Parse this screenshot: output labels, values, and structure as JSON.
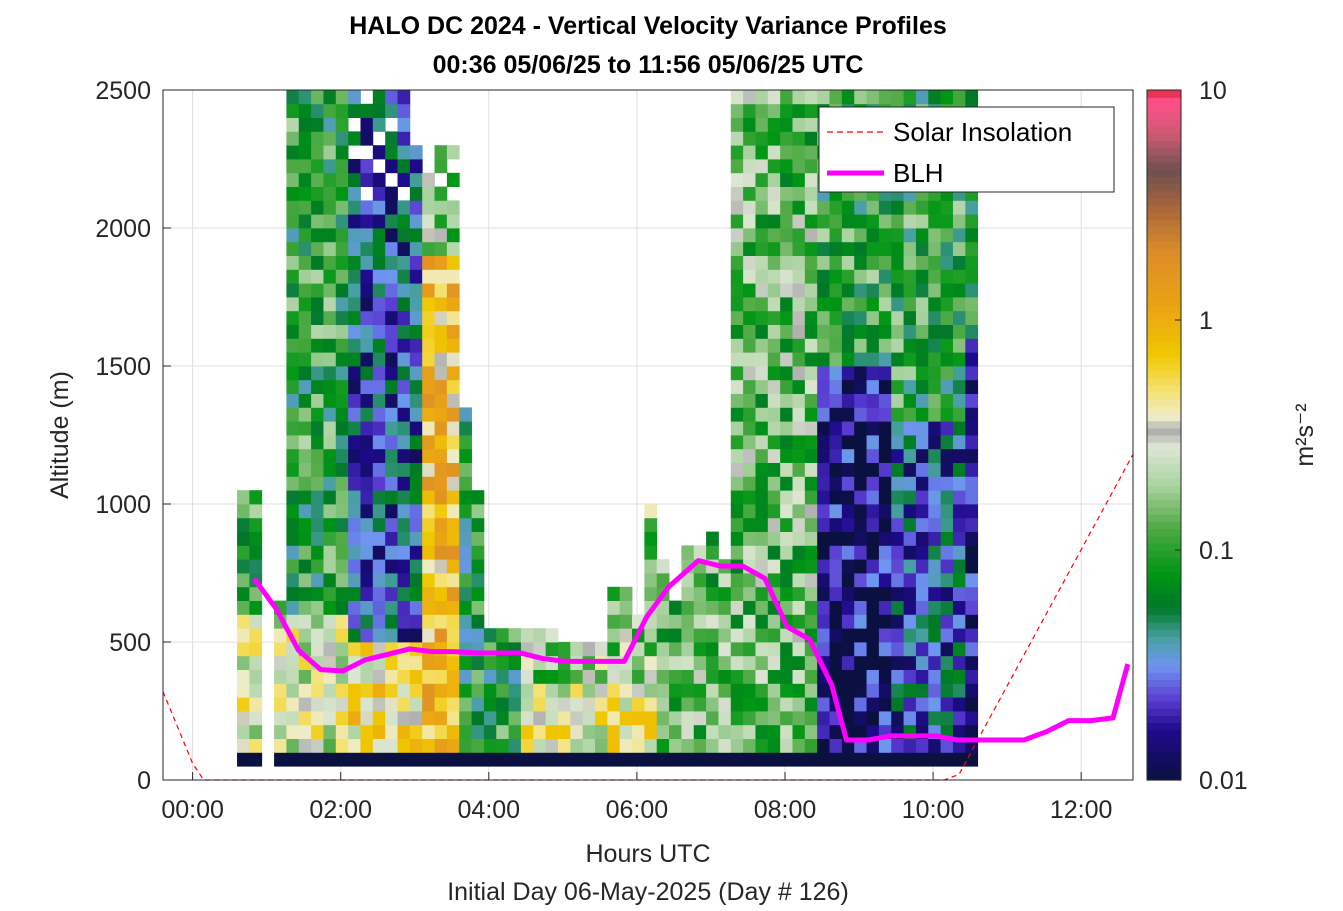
{
  "chart_data": {
    "type": "heatmap",
    "title_line1": "HALO DC 2024 - Vertical Velocity Variance Profiles",
    "title_line2": "00:36 05/06/25 to 11:56 05/06/25  UTC",
    "xlabel": "Hours UTC",
    "xlabel2": "Initial Day 06-May-2025 (Day # 126)",
    "ylabel": "Altitude (m)",
    "colorbar_label": "m²s⁻²",
    "xlim": [
      -0.4,
      12.7
    ],
    "ylim": [
      0,
      2500
    ],
    "x_ticks": [
      {
        "value": 0,
        "label": "00:00"
      },
      {
        "value": 2,
        "label": "02:00"
      },
      {
        "value": 4,
        "label": "04:00"
      },
      {
        "value": 6,
        "label": "06:00"
      },
      {
        "value": 8,
        "label": "08:00"
      },
      {
        "value": 10,
        "label": "10:00"
      },
      {
        "value": 12,
        "label": "12:00"
      }
    ],
    "y_ticks": [
      {
        "value": 0,
        "label": "0"
      },
      {
        "value": 500,
        "label": "500"
      },
      {
        "value": 1000,
        "label": "1000"
      },
      {
        "value": 1500,
        "label": "1500"
      },
      {
        "value": 2000,
        "label": "2000"
      },
      {
        "value": 2500,
        "label": "2500"
      }
    ],
    "colorbar": {
      "scale": "log",
      "range": [
        0.01,
        10
      ],
      "ticks": [
        {
          "value": 0.01,
          "label": "0.01"
        },
        {
          "value": 0.1,
          "label": "0.1"
        },
        {
          "value": 1,
          "label": "1"
        },
        {
          "value": 10,
          "label": "10"
        }
      ]
    },
    "grid": true,
    "legend_position": "top-right",
    "legend": [
      {
        "name": "Solar Insolation",
        "color": "#ff0000",
        "style": "dashed"
      },
      {
        "name": "BLH",
        "color": "#ff00ff",
        "style": "solid"
      }
    ],
    "profiles_start_hour": 0.6,
    "profiles_step_hours": 0.1667,
    "altitude_bin_m": 50,
    "profiles_top_m": [
      1050,
      1050,
      0,
      650,
      2500,
      2500,
      2500,
      2500,
      2500,
      2500,
      2500,
      2500,
      2500,
      2500,
      2300,
      2300,
      2300,
      2300,
      1350,
      1050,
      550,
      550,
      550,
      550,
      550,
      550,
      500,
      500,
      500,
      500,
      700,
      700,
      600,
      1000,
      800,
      650,
      850,
      850,
      900,
      800,
      2500,
      2500,
      2500,
      2500,
      2500,
      2500,
      2500,
      2500,
      2500,
      2500,
      2500,
      2500,
      2500,
      2500,
      2500,
      2500,
      2500,
      2500,
      2500,
      2500
    ],
    "blh": {
      "x": [
        0.83,
        1.13,
        1.43,
        1.73,
        2.03,
        2.33,
        2.63,
        2.93,
        3.23,
        3.53,
        3.83,
        4.13,
        4.43,
        4.73,
        5.03,
        5.33,
        5.63,
        5.83,
        6.13,
        6.43,
        6.83,
        7.13,
        7.43,
        7.73,
        8.03,
        8.33,
        8.63,
        8.83,
        9.13,
        9.43,
        9.73,
        10.03,
        10.33,
        10.63,
        10.93,
        11.23,
        11.53,
        11.83,
        12.13,
        12.43,
        12.63
      ],
      "y": [
        730,
        620,
        470,
        400,
        395,
        435,
        455,
        475,
        465,
        465,
        460,
        460,
        460,
        440,
        430,
        430,
        430,
        430,
        590,
        700,
        795,
        775,
        775,
        730,
        555,
        510,
        345,
        145,
        145,
        160,
        160,
        160,
        145,
        145,
        145,
        145,
        175,
        215,
        215,
        225,
        420
      ]
    },
    "solar_insolation": {
      "x": [
        -0.4,
        0.0,
        0.15,
        10.15,
        10.35,
        12.7
      ],
      "y": [
        320,
        60,
        0,
        0,
        20,
        1180
      ]
    },
    "variance_field_note": "cell values drawn procedurally"
  }
}
